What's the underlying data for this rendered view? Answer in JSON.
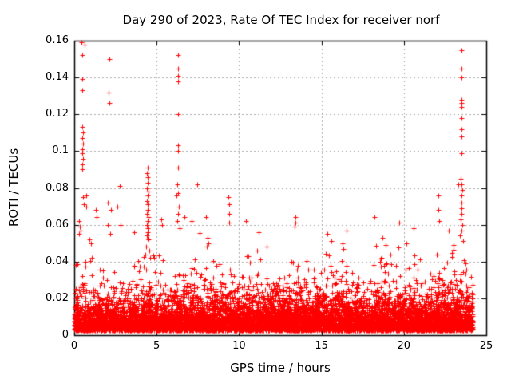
{
  "chart_data": {
    "type": "scatter",
    "title": "Day 290 of 2023, Rate Of TEC Index for receiver norf",
    "xlabel": "GPS time / hours",
    "ylabel": "ROTI / TECUs",
    "xlim": [
      0,
      25
    ],
    "ylim": [
      0,
      0.16
    ],
    "xticks": {
      "values": [
        0,
        5,
        10,
        15,
        20,
        25
      ],
      "labels": [
        "0",
        "5",
        "10",
        "15",
        "20",
        "25"
      ]
    },
    "yticks": {
      "values": [
        0,
        0.02,
        0.04,
        0.06,
        0.08,
        0.1,
        0.12,
        0.14,
        0.16
      ],
      "labels": [
        "0",
        "0.02",
        "0.04",
        "0.06",
        "0.08",
        "0.1",
        "0.12",
        "0.14",
        "0.16"
      ]
    },
    "grid": true,
    "legend_position": "none",
    "marker": "plus",
    "marker_size_px": 7,
    "colors": {
      "points": "#ff0000",
      "grid": "#aaaaaa",
      "axis": "#000000",
      "background": "#ffffff",
      "text": "#000000"
    },
    "series": [
      {
        "name": "ROTI",
        "color": "#ff0000",
        "outlier_points": [
          [
            0.45,
            0.159
          ],
          [
            0.62,
            0.158
          ],
          [
            0.5,
            0.152
          ],
          [
            0.5,
            0.139
          ],
          [
            0.5,
            0.133
          ],
          [
            0.48,
            0.113
          ],
          [
            0.52,
            0.11
          ],
          [
            0.5,
            0.107
          ],
          [
            0.53,
            0.104
          ],
          [
            0.47,
            0.101
          ],
          [
            0.5,
            0.099
          ],
          [
            0.52,
            0.096
          ],
          [
            0.48,
            0.093
          ],
          [
            0.5,
            0.09
          ],
          [
            0.55,
            0.075
          ],
          [
            0.58,
            0.071
          ],
          [
            0.73,
            0.076
          ],
          [
            0.75,
            0.07
          ],
          [
            0.3,
            0.062
          ],
          [
            0.33,
            0.059
          ],
          [
            0.38,
            0.057
          ],
          [
            0.28,
            0.055
          ],
          [
            0.9,
            0.052
          ],
          [
            1.0,
            0.05
          ],
          [
            1.3,
            0.068
          ],
          [
            1.35,
            0.064
          ],
          [
            2.13,
            0.15
          ],
          [
            2.1,
            0.132
          ],
          [
            2.12,
            0.126
          ],
          [
            2.03,
            0.072
          ],
          [
            2.6,
            0.07
          ],
          [
            2.05,
            0.06
          ],
          [
            2.2,
            0.055
          ],
          [
            2.25,
            0.068
          ],
          [
            2.76,
            0.081
          ],
          [
            2.8,
            0.06
          ],
          [
            3.63,
            0.056
          ],
          [
            4.45,
            0.091
          ],
          [
            4.42,
            0.088
          ],
          [
            4.48,
            0.086
          ],
          [
            4.45,
            0.083
          ],
          [
            4.4,
            0.08
          ],
          [
            4.5,
            0.078
          ],
          [
            4.45,
            0.076
          ],
          [
            4.43,
            0.073
          ],
          [
            4.47,
            0.071
          ],
          [
            4.45,
            0.068
          ],
          [
            4.4,
            0.066
          ],
          [
            4.5,
            0.064
          ],
          [
            4.45,
            0.062
          ],
          [
            4.42,
            0.06
          ],
          [
            4.48,
            0.058
          ],
          [
            4.45,
            0.056
          ],
          [
            4.4,
            0.054
          ],
          [
            4.5,
            0.052
          ],
          [
            4.35,
            0.048
          ],
          [
            4.55,
            0.046
          ],
          [
            4.3,
            0.044
          ],
          [
            4.6,
            0.042
          ],
          [
            5.3,
            0.063
          ],
          [
            5.35,
            0.06
          ],
          [
            6.28,
            0.152
          ],
          [
            6.3,
            0.145
          ],
          [
            6.32,
            0.141
          ],
          [
            6.3,
            0.138
          ],
          [
            6.3,
            0.12
          ],
          [
            6.28,
            0.103
          ],
          [
            6.32,
            0.1
          ],
          [
            6.3,
            0.091
          ],
          [
            6.25,
            0.082
          ],
          [
            6.3,
            0.077
          ],
          [
            6.2,
            0.076
          ],
          [
            6.35,
            0.07
          ],
          [
            6.3,
            0.066
          ],
          [
            6.25,
            0.062
          ],
          [
            6.4,
            0.058
          ],
          [
            6.7,
            0.064
          ],
          [
            7.1,
            0.062
          ],
          [
            7.46,
            0.082
          ],
          [
            8.0,
            0.064
          ],
          [
            8.1,
            0.053
          ],
          [
            8.15,
            0.05
          ],
          [
            8.05,
            0.048
          ],
          [
            9.35,
            0.075
          ],
          [
            9.4,
            0.071
          ],
          [
            9.38,
            0.066
          ],
          [
            9.42,
            0.061
          ],
          [
            10.4,
            0.062
          ],
          [
            11.2,
            0.056
          ],
          [
            13.4,
            0.064
          ],
          [
            13.42,
            0.061
          ],
          [
            13.38,
            0.059
          ],
          [
            15.35,
            0.055
          ],
          [
            15.6,
            0.051
          ],
          [
            16.5,
            0.057
          ],
          [
            16.3,
            0.05
          ],
          [
            16.35,
            0.047
          ],
          [
            18.2,
            0.064
          ],
          [
            18.7,
            0.053
          ],
          [
            18.9,
            0.049
          ],
          [
            19.7,
            0.061
          ],
          [
            20.6,
            0.058
          ],
          [
            22.1,
            0.076
          ],
          [
            22.1,
            0.068
          ],
          [
            22.12,
            0.062
          ],
          [
            22.7,
            0.057
          ],
          [
            23.0,
            0.049
          ],
          [
            23.3,
            0.082
          ],
          [
            23.5,
            0.155
          ],
          [
            23.5,
            0.145
          ],
          [
            23.52,
            0.14
          ],
          [
            23.48,
            0.128
          ],
          [
            23.5,
            0.126
          ],
          [
            23.52,
            0.124
          ],
          [
            23.5,
            0.118
          ],
          [
            23.5,
            0.112
          ],
          [
            23.48,
            0.108
          ],
          [
            23.5,
            0.099
          ],
          [
            23.45,
            0.085
          ],
          [
            23.5,
            0.082
          ],
          [
            23.55,
            0.079
          ],
          [
            23.5,
            0.076
          ],
          [
            23.48,
            0.072
          ],
          [
            23.52,
            0.069
          ],
          [
            23.5,
            0.066
          ],
          [
            23.45,
            0.063
          ],
          [
            23.55,
            0.06
          ],
          [
            23.5,
            0.057
          ],
          [
            23.4,
            0.054
          ],
          [
            23.6,
            0.051
          ]
        ],
        "background_band": {
          "description": "dense noise band of ~9000 ROTI samples, 0 to 24.2 h, mostly 0.003-0.03 TECU, ragged top to ~0.05",
          "t_max": 24.2,
          "v_min": 0.0025,
          "n_points": 9000,
          "exp_scale": 0.0068,
          "seed": 1290,
          "envelope_t_step": 0.5,
          "envelope": [
            0.052,
            0.05,
            0.044,
            0.048,
            0.046,
            0.05,
            0.046,
            0.056,
            0.048,
            0.075,
            0.046,
            0.042,
            0.05,
            0.058,
            0.048,
            0.056,
            0.054,
            0.044,
            0.048,
            0.058,
            0.046,
            0.044,
            0.05,
            0.054,
            0.048,
            0.044,
            0.048,
            0.058,
            0.046,
            0.05,
            0.054,
            0.052,
            0.048,
            0.054,
            0.046,
            0.042,
            0.05,
            0.054,
            0.052,
            0.056,
            0.05,
            0.054,
            0.044,
            0.046,
            0.056,
            0.052,
            0.05,
            0.066,
            0.048
          ]
        }
      }
    ]
  }
}
